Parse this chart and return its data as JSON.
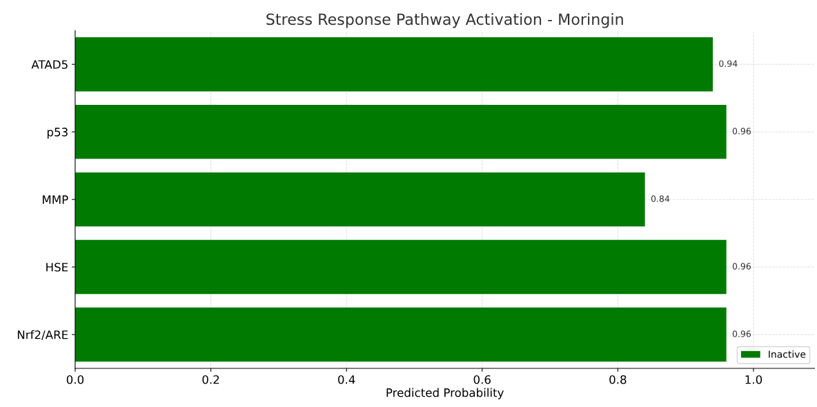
{
  "chart_data": {
    "type": "bar",
    "orientation": "horizontal",
    "title": "Stress Response Pathway Activation - Moringin",
    "xlabel": "Predicted Probability",
    "categories": [
      "ATAD5",
      "p53",
      "MMP",
      "HSE",
      "Nrf2/ARE"
    ],
    "series": [
      {
        "name": "Inactive",
        "color": "#007a00",
        "values": [
          0.94,
          0.96,
          0.84,
          0.96,
          0.96
        ]
      }
    ],
    "xlim": [
      0,
      1.09
    ],
    "xticks": [
      {
        "value": 0,
        "label": "0.0"
      },
      0.2,
      0.4,
      0.6,
      0.8,
      {
        "value": 1,
        "label": "1.0"
      }
    ],
    "data_labels": true,
    "grid": true,
    "legend": "bottom right"
  }
}
